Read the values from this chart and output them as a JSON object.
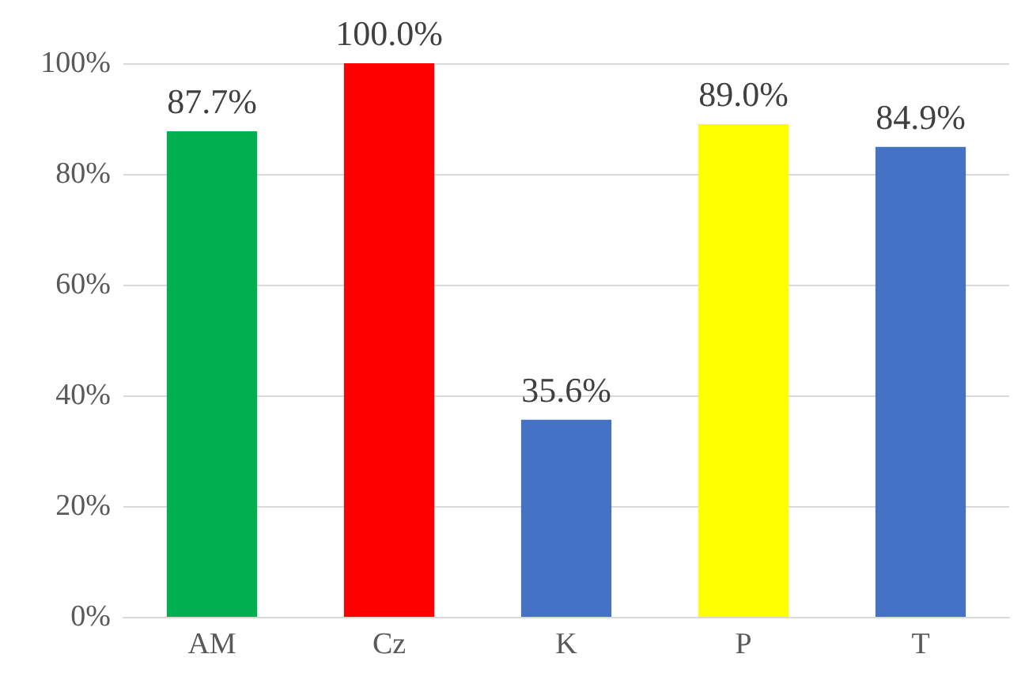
{
  "chart_data": {
    "type": "bar",
    "categories": [
      "AM",
      "Cz",
      "K",
      "P",
      "T"
    ],
    "values": [
      87.7,
      100.0,
      35.6,
      89.0,
      84.9
    ],
    "colors": [
      "#00b050",
      "#ff0000",
      "#4472c4",
      "#ffff00",
      "#4472c4"
    ],
    "value_labels": [
      "87.7%",
      "100.0%",
      "35.6%",
      "89.0%",
      "84.9%"
    ],
    "ylim": [
      0,
      100
    ],
    "yticks": [
      {
        "value": 0,
        "label": "0%"
      },
      {
        "value": 20,
        "label": "20%"
      },
      {
        "value": 40,
        "label": "40%"
      },
      {
        "value": 60,
        "label": "60%"
      },
      {
        "value": 80,
        "label": "80%"
      },
      {
        "value": 100,
        "label": "100%"
      }
    ],
    "grid": "y"
  }
}
